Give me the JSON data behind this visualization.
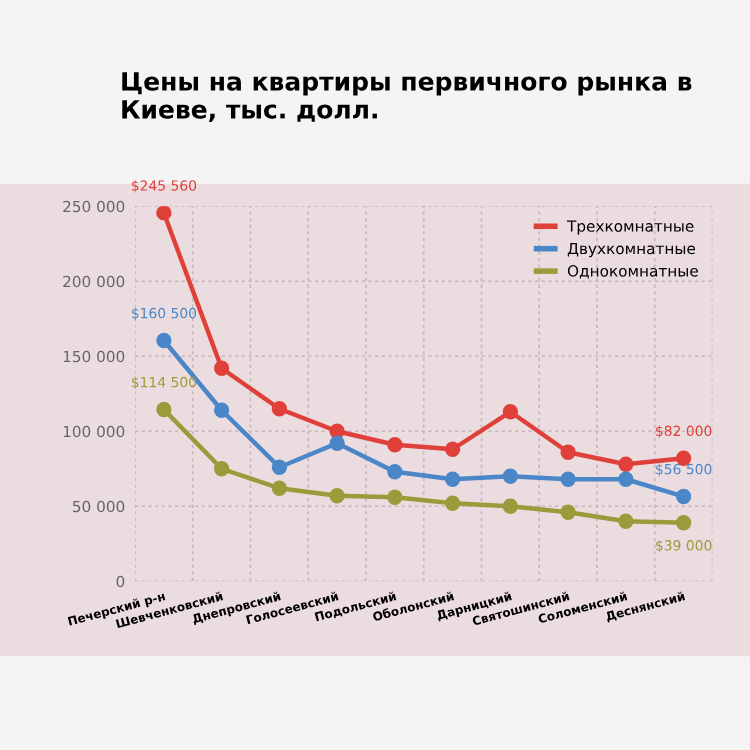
{
  "chart_data": {
    "type": "line",
    "title": "Цены на квартиры первичного рынка в Киеве, тыс. долл.",
    "categories": [
      "Печерский р-н",
      "Шевченковский",
      "Днепровский",
      "Голосеевский",
      "Подольский",
      "Оболонский",
      "Дарницкий",
      "Святошинский",
      "Соломенский",
      "Деснянский"
    ],
    "series": [
      {
        "name": "Трехкомнатные",
        "color": "#e0403a",
        "values": [
          245560,
          142000,
          115000,
          100000,
          91000,
          88000,
          113000,
          86000,
          78000,
          82000
        ],
        "value_labels": [
          "$245 560",
          null,
          null,
          null,
          null,
          null,
          null,
          null,
          null,
          "$82 000"
        ]
      },
      {
        "name": "Двухкомнатные",
        "color": "#4a86c8",
        "values": [
          160500,
          114000,
          76000,
          92000,
          73000,
          68000,
          70000,
          68000,
          68000,
          56500
        ],
        "value_labels": [
          "$160 500",
          null,
          null,
          null,
          null,
          null,
          null,
          null,
          null,
          "$56 500"
        ]
      },
      {
        "name": "Однокомнатные",
        "color": "#9c9a3a",
        "values": [
          114500,
          75000,
          62000,
          57000,
          56000,
          52000,
          50000,
          46000,
          40000,
          39000
        ],
        "value_labels": [
          "$114 500",
          null,
          null,
          null,
          null,
          null,
          null,
          null,
          null,
          "$39 000"
        ]
      }
    ],
    "ylim": [
      0,
      250000
    ],
    "yticks": [
      {
        "value": 0,
        "label": "0"
      },
      {
        "value": 50000,
        "label": "50 000"
      },
      {
        "value": 100000,
        "label": "100 000"
      },
      {
        "value": 150000,
        "label": "150 000"
      },
      {
        "value": 200000,
        "label": "200 000"
      },
      {
        "value": 250000,
        "label": "250 000"
      }
    ],
    "grid": true,
    "legend": "top right",
    "marker": "circle",
    "line_style": "solid"
  }
}
